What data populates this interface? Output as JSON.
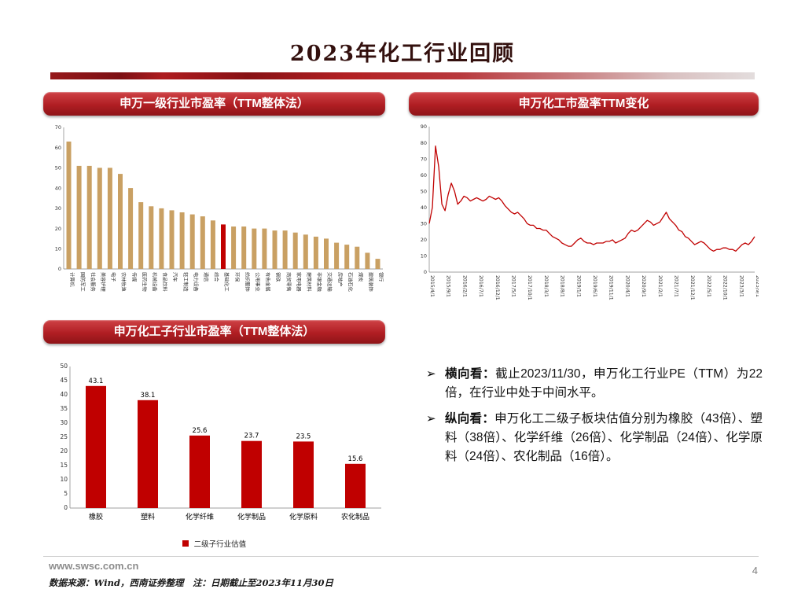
{
  "page": {
    "title": "2023年化工行业回顾"
  },
  "panels": {
    "industry_pe_header": "申万一级行业市盈率（TTM整体法）",
    "pe_change_header": "申万化工市盈率TTM变化",
    "sub_industry_header": "申万化工子行业市盈率（TTM整体法）"
  },
  "bullets": [
    {
      "marker": "➢",
      "lead": "横向看：",
      "text": "截止2023/11/30，申万化工行业PE（TTM）为22倍，在行业中处于中间水平。"
    },
    {
      "marker": "➢",
      "lead": "纵向看：",
      "text": "申万化工二级子板块估值分别为橡胶（43倍）、塑料（38倍）、化学纤维（26倍）、化学制品（24倍）、化学原料（24倍）、农化制品（16倍）。"
    }
  ],
  "footer": {
    "url": "www.swsc.com.cn",
    "page_number": "4",
    "source_note": "数据来源：Wind，西南证券整理　注：日期截止至2023年11月30日"
  },
  "colors": {
    "accent_red": "#c00000",
    "panel_red": "#b01e23",
    "bar_tan": "#c9a063",
    "footer_gray": "#8c8c8c"
  },
  "chart_data": [
    {
      "type": "bar",
      "title": "申万一级行业市盈率（TTM整体法）",
      "categories": [
        "计算机",
        "国防军工",
        "社会服务",
        "美容护理",
        "电子",
        "农林牧渔",
        "传媒",
        "医药生物",
        "机械设备",
        "食品饮料",
        "汽车",
        "轻工制造",
        "电力设备",
        "通信",
        "综合",
        "基础化工",
        "环保",
        "纺织服饰",
        "公用事业",
        "有色金属",
        "钢铁",
        "商贸零售",
        "家用电器",
        "建筑材料",
        "非银金融",
        "交通运输",
        "房地产",
        "石油石化",
        "煤炭",
        "建筑装饰",
        "银行"
      ],
      "values": [
        63,
        51,
        51,
        50,
        50,
        47,
        40,
        33,
        31,
        30,
        29,
        28,
        27,
        26,
        24,
        22,
        21,
        21,
        20,
        20,
        19,
        19,
        18,
        17,
        16,
        15,
        13,
        12,
        11,
        8,
        5
      ],
      "bar_color": "#c9a063",
      "highlight_index": 15,
      "highlight_color": "#c00000",
      "ylim": [
        0,
        70
      ],
      "ytick_step": 10,
      "grid": false,
      "legend_position": "none"
    },
    {
      "type": "line",
      "title": "申万化工市盈率TTM变化",
      "color": "#c00000",
      "ylim": [
        0,
        90
      ],
      "ytick_step": 10,
      "grid": false,
      "x_labels": [
        "2015/4/1",
        "2015/9/1",
        "2016/2/1",
        "2016/7/1",
        "2016/12/1",
        "2017/5/1",
        "2017/10/1",
        "2018/3/1",
        "2018/8/1",
        "2019/1/1",
        "2019/6/1",
        "2019/11/1",
        "2020/4/1",
        "2020/9/1",
        "2021/2/1",
        "2021/7/1",
        "2021/12/1",
        "2022/5/1",
        "2022/10/1",
        "2023/3/1",
        "2023/9/1"
      ],
      "values": [
        30,
        40,
        78,
        65,
        42,
        38,
        48,
        55,
        50,
        42,
        44,
        47,
        46,
        44,
        45,
        46,
        45,
        44,
        45,
        47,
        46,
        45,
        46,
        44,
        41,
        39,
        37,
        36,
        37,
        35,
        33,
        30,
        29,
        29,
        27,
        27,
        26,
        26,
        24,
        22,
        21,
        20,
        18,
        17,
        16,
        16,
        18,
        20,
        21,
        19,
        18,
        18,
        17,
        18,
        18,
        18,
        19,
        19,
        20,
        18,
        19,
        20,
        21,
        24,
        26,
        25,
        26,
        28,
        30,
        32,
        31,
        29,
        30,
        31,
        34,
        37,
        33,
        31,
        29,
        26,
        25,
        22,
        21,
        19,
        17,
        18,
        19,
        18,
        16,
        14,
        13,
        14,
        14,
        15,
        15,
        14,
        14,
        13,
        15,
        17,
        18,
        17,
        19,
        22
      ]
    },
    {
      "type": "bar",
      "title": "申万化工子行业市盈率（TTM整体法）",
      "categories": [
        "橡胶",
        "塑料",
        "化学纤维",
        "化学制品",
        "化学原料",
        "农化制品"
      ],
      "values": [
        43.1,
        38.1,
        25.6,
        23.7,
        23.5,
        15.6
      ],
      "value_labels": [
        "43.1",
        "38.1",
        "25.6",
        "23.7",
        "23.5",
        "15.6"
      ],
      "bar_color": "#c00000",
      "legend": "二级子行业估值",
      "legend_position": "bottom",
      "ylim": [
        0,
        50
      ],
      "ytick_step": 5,
      "grid": false
    }
  ]
}
